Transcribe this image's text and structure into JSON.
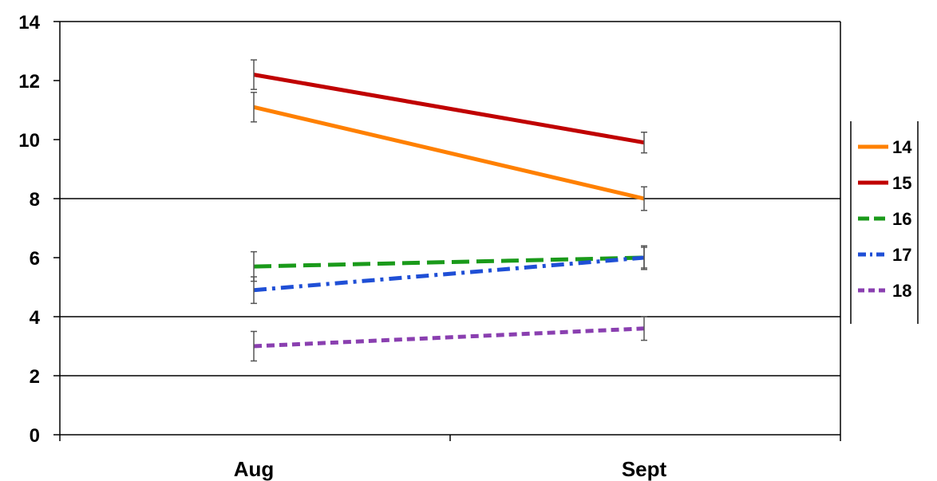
{
  "chart_data": {
    "type": "line",
    "title": "",
    "xlabel": "",
    "ylabel": "",
    "categories": [
      "Aug",
      "Sept"
    ],
    "ylim": [
      0,
      14
    ],
    "yticks": [
      0,
      2,
      4,
      6,
      8,
      10,
      12,
      14
    ],
    "gridlines": [
      2,
      4,
      8
    ],
    "legend_position": "right",
    "series": [
      {
        "name": "14",
        "values": [
          11.1,
          8.0
        ],
        "errors": [
          0.5,
          0.4
        ],
        "color": "#ff8000",
        "dash": "solid"
      },
      {
        "name": "15",
        "values": [
          12.2,
          9.9
        ],
        "errors": [
          0.5,
          0.35
        ],
        "color": "#c00000",
        "dash": "solid"
      },
      {
        "name": "16",
        "values": [
          5.7,
          6.0
        ],
        "errors": [
          0.5,
          0.35
        ],
        "color": "#1a9a1a",
        "dash": "long-dash"
      },
      {
        "name": "17",
        "values": [
          4.9,
          6.0
        ],
        "errors": [
          0.45,
          0.4
        ],
        "color": "#1f4fd6",
        "dash": "dash-dot"
      },
      {
        "name": "18",
        "values": [
          3.0,
          3.6
        ],
        "errors": [
          0.5,
          0.4
        ],
        "color": "#8a3fb0",
        "dash": "short-dash"
      }
    ]
  }
}
